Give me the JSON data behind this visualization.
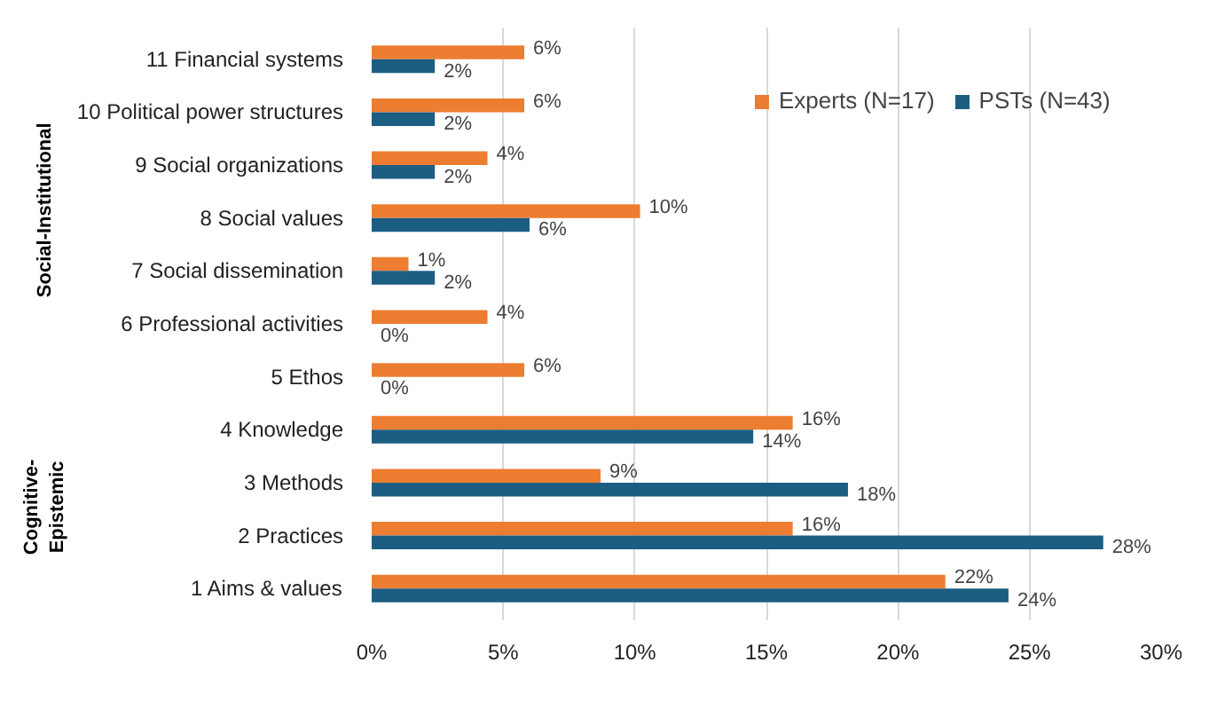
{
  "chart_data": {
    "type": "bar",
    "orientation": "horizontal",
    "categories": [
      "11 Financial systems",
      "10 Political power structures",
      "9 Social organizations",
      "8 Social values",
      "7 Social dissemination",
      "6 Professional activities",
      "5 Ethos",
      "4 Knowledge",
      "3 Methods",
      "2 Practices",
      "1 Aims & values"
    ],
    "series": [
      {
        "name": "Experts (N=17)",
        "color": "#ed7d31",
        "values": [
          5.8,
          5.8,
          4.4,
          10.2,
          1.4,
          4.4,
          5.8,
          16.0,
          8.7,
          16.0,
          21.8
        ],
        "value_labels": [
          "6%",
          "6%",
          "4%",
          "10%",
          "1%",
          "4%",
          "6%",
          "16%",
          "9%",
          "16%",
          "22%"
        ]
      },
      {
        "name": "PSTs (N=43)",
        "color": "#1b5e82",
        "values": [
          2.4,
          2.4,
          2.4,
          6.0,
          2.4,
          0,
          0,
          14.5,
          18.1,
          27.8,
          24.2
        ],
        "value_labels": [
          "2%",
          "2%",
          "2%",
          "6%",
          "2%",
          "0%",
          "0%",
          "14%",
          "18%",
          "28%",
          "24%"
        ]
      }
    ],
    "xlim": [
      0,
      30
    ],
    "xticks": [
      {
        "value": 0,
        "label": "0%"
      },
      {
        "value": 5,
        "label": "5%"
      },
      {
        "value": 10,
        "label": "10%"
      },
      {
        "value": 15,
        "label": "15%"
      },
      {
        "value": 20,
        "label": "20%"
      },
      {
        "value": 25,
        "label": "25%"
      },
      {
        "value": 30,
        "label": "30%"
      }
    ],
    "grid": "x",
    "legend": "top right",
    "annotations": [
      "Social-Institutional",
      "Cognitive-\nEpistemic"
    ]
  }
}
